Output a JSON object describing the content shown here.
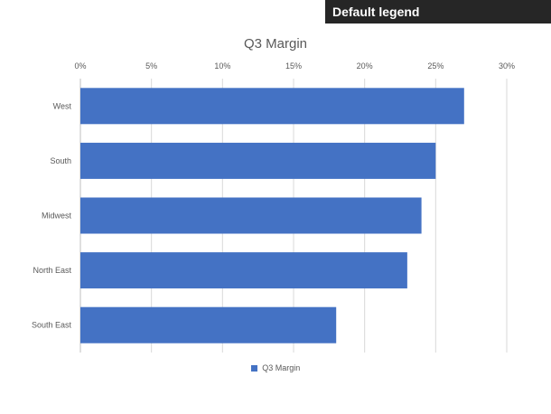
{
  "banner": {
    "text": "Default legend"
  },
  "chart_data": {
    "type": "bar",
    "orientation": "horizontal",
    "title": "Q3 Margin",
    "categories": [
      "West",
      "South",
      "Midwest",
      "North East",
      "South East"
    ],
    "series": [
      {
        "name": "Q3 Margin",
        "values": [
          0.27,
          0.25,
          0.24,
          0.23,
          0.18
        ],
        "color": "#4472C4"
      }
    ],
    "x_axis": {
      "min": 0,
      "max": 0.3,
      "ticks": [
        0,
        0.05,
        0.1,
        0.15,
        0.2,
        0.25,
        0.3
      ],
      "tick_labels": [
        "0%",
        "5%",
        "10%",
        "15%",
        "20%",
        "25%",
        "30%"
      ],
      "position": "top"
    },
    "grid": true,
    "legend": {
      "position": "bottom",
      "entries": [
        "Q3 Margin"
      ]
    }
  }
}
